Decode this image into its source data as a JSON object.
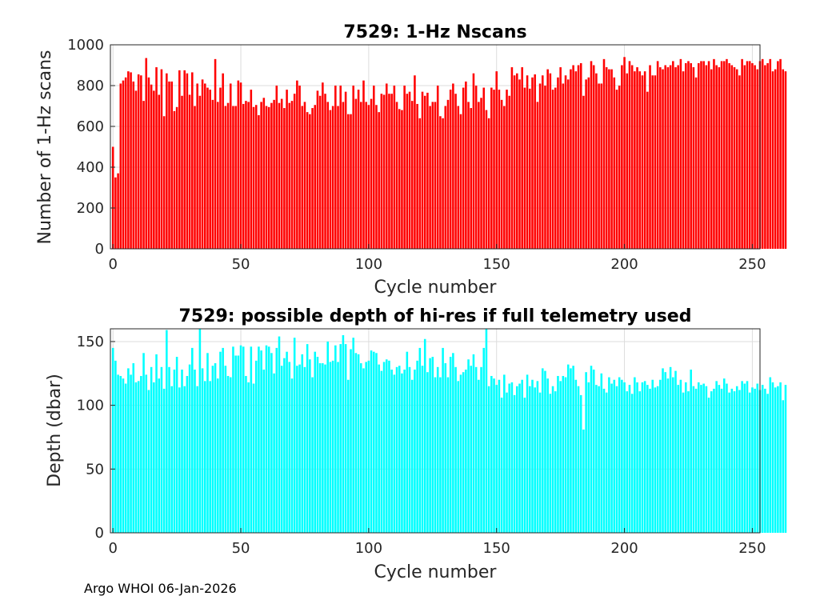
{
  "footer": "Argo WHOI 06-Jan-2026",
  "colors": {
    "top_bars": "#ff0000",
    "bottom_bars": "#00ffff",
    "grid": "#dcdcdc",
    "axis": "#262626"
  },
  "chart_data": [
    {
      "type": "bar",
      "title": "7529: 1-Hz Nscans",
      "xlabel": "Cycle number",
      "ylabel": "Number of 1-Hz scans",
      "xlim": [
        -1,
        253
      ],
      "ylim": [
        0,
        1000
      ],
      "xticks": [
        0,
        50,
        100,
        150,
        200,
        250
      ],
      "yticks": [
        0,
        200,
        400,
        600,
        800,
        1000
      ],
      "grid": true,
      "x_start": 0,
      "values": [
        500,
        350,
        370,
        810,
        825,
        840,
        870,
        865,
        820,
        775,
        855,
        850,
        725,
        935,
        840,
        805,
        775,
        890,
        755,
        880,
        650,
        860,
        820,
        820,
        675,
        695,
        875,
        750,
        875,
        860,
        755,
        865,
        700,
        810,
        750,
        830,
        810,
        790,
        780,
        730,
        930,
        720,
        790,
        860,
        700,
        715,
        810,
        700,
        700,
        825,
        815,
        710,
        725,
        720,
        780,
        695,
        705,
        655,
        720,
        740,
        700,
        695,
        715,
        730,
        800,
        715,
        735,
        690,
        780,
        715,
        725,
        760,
        825,
        800,
        700,
        720,
        670,
        660,
        690,
        705,
        775,
        750,
        815,
        760,
        720,
        680,
        700,
        800,
        700,
        800,
        720,
        770,
        660,
        660,
        800,
        735,
        780,
        720,
        825,
        720,
        705,
        735,
        800,
        705,
        670,
        760,
        755,
        810,
        760,
        760,
        800,
        720,
        685,
        680,
        800,
        760,
        770,
        725,
        850,
        710,
        640,
        770,
        750,
        765,
        700,
        720,
        720,
        800,
        650,
        640,
        700,
        730,
        780,
        810,
        760,
        700,
        660,
        790,
        820,
        720,
        690,
        860,
        800,
        720,
        740,
        790,
        680,
        640,
        790,
        780,
        870,
        780,
        730,
        700,
        780,
        750,
        890,
        850,
        860,
        830,
        890,
        790,
        850,
        785,
        840,
        855,
        720,
        810,
        850,
        800,
        880,
        860,
        780,
        790,
        840,
        890,
        810,
        850,
        830,
        880,
        900,
        870,
        900,
        910,
        750,
        830,
        840,
        920,
        900,
        860,
        810,
        810,
        930,
        890,
        880,
        880,
        840,
        780,
        800,
        900,
        940,
        860,
        920,
        900,
        870,
        890,
        870,
        850,
        870,
        770,
        900,
        850,
        850,
        920,
        890,
        880,
        900,
        890,
        900,
        920,
        890,
        900,
        930,
        870,
        910,
        920,
        910,
        890,
        840,
        910,
        920,
        920,
        900,
        920,
        880,
        930,
        900,
        890,
        920,
        920,
        930,
        910,
        900,
        890,
        880,
        850,
        930,
        900,
        920,
        920,
        910,
        900,
        880,
        920,
        930,
        900,
        910,
        930,
        870,
        880,
        920,
        930,
        880,
        870
      ]
    },
    {
      "type": "bar",
      "title": "7529: possible depth of hi-res if full telemetry used",
      "xlabel": "Cycle number",
      "ylabel": "Depth (dbar)",
      "xlim": [
        -1,
        253
      ],
      "ylim": [
        0,
        160
      ],
      "xticks": [
        0,
        50,
        100,
        150,
        200,
        250
      ],
      "yticks": [
        0,
        50,
        100,
        150
      ],
      "grid": true,
      "x_start": 0,
      "values": [
        145,
        135,
        124,
        123,
        121,
        117,
        129,
        124,
        133,
        118,
        119,
        123,
        141,
        124,
        112,
        130,
        118,
        140,
        121,
        130,
        113,
        159,
        130,
        115,
        128,
        138,
        114,
        128,
        115,
        123,
        132,
        145,
        128,
        115,
        160,
        129,
        119,
        141,
        119,
        131,
        133,
        121,
        142,
        145,
        131,
        123,
        122,
        146,
        139,
        139,
        147,
        146,
        123,
        118,
        146,
        117,
        135,
        146,
        143,
        128,
        147,
        146,
        141,
        125,
        145,
        154,
        131,
        137,
        142,
        134,
        121,
        153,
        131,
        132,
        140,
        130,
        148,
        136,
        122,
        142,
        138,
        133,
        133,
        132,
        150,
        134,
        135,
        147,
        134,
        148,
        155,
        148,
        120,
        144,
        153,
        141,
        140,
        133,
        129,
        134,
        135,
        143,
        142,
        141,
        132,
        127,
        134,
        136,
        135,
        128,
        124,
        130,
        131,
        125,
        128,
        142,
        130,
        120,
        128,
        135,
        145,
        131,
        152,
        126,
        137,
        138,
        122,
        130,
        122,
        145,
        133,
        122,
        138,
        141,
        130,
        119,
        124,
        126,
        128,
        136,
        131,
        140,
        130,
        120,
        130,
        145,
        160,
        115,
        123,
        121,
        116,
        120,
        106,
        124,
        110,
        117,
        118,
        108,
        115,
        117,
        120,
        106,
        124,
        115,
        120,
        114,
        119,
        110,
        129,
        127,
        121,
        109,
        115,
        111,
        123,
        119,
        123,
        122,
        132,
        129,
        131,
        120,
        115,
        108,
        81,
        126,
        118,
        131,
        128,
        116,
        115,
        125,
        113,
        110,
        122,
        117,
        120,
        115,
        122,
        120,
        118,
        111,
        116,
        109,
        122,
        118,
        111,
        118,
        119,
        116,
        113,
        120,
        114,
        115,
        120,
        129,
        126,
        121,
        130,
        122,
        127,
        116,
        120,
        110,
        118,
        111,
        128,
        115,
        113,
        118,
        116,
        117,
        115,
        106,
        111,
        113,
        119,
        116,
        113,
        121,
        117,
        110,
        113,
        111,
        115,
        112,
        119,
        117,
        119,
        110,
        114,
        113,
        117,
        112,
        116,
        113,
        109,
        122,
        118,
        114,
        115,
        118,
        104,
        116
      ]
    }
  ]
}
